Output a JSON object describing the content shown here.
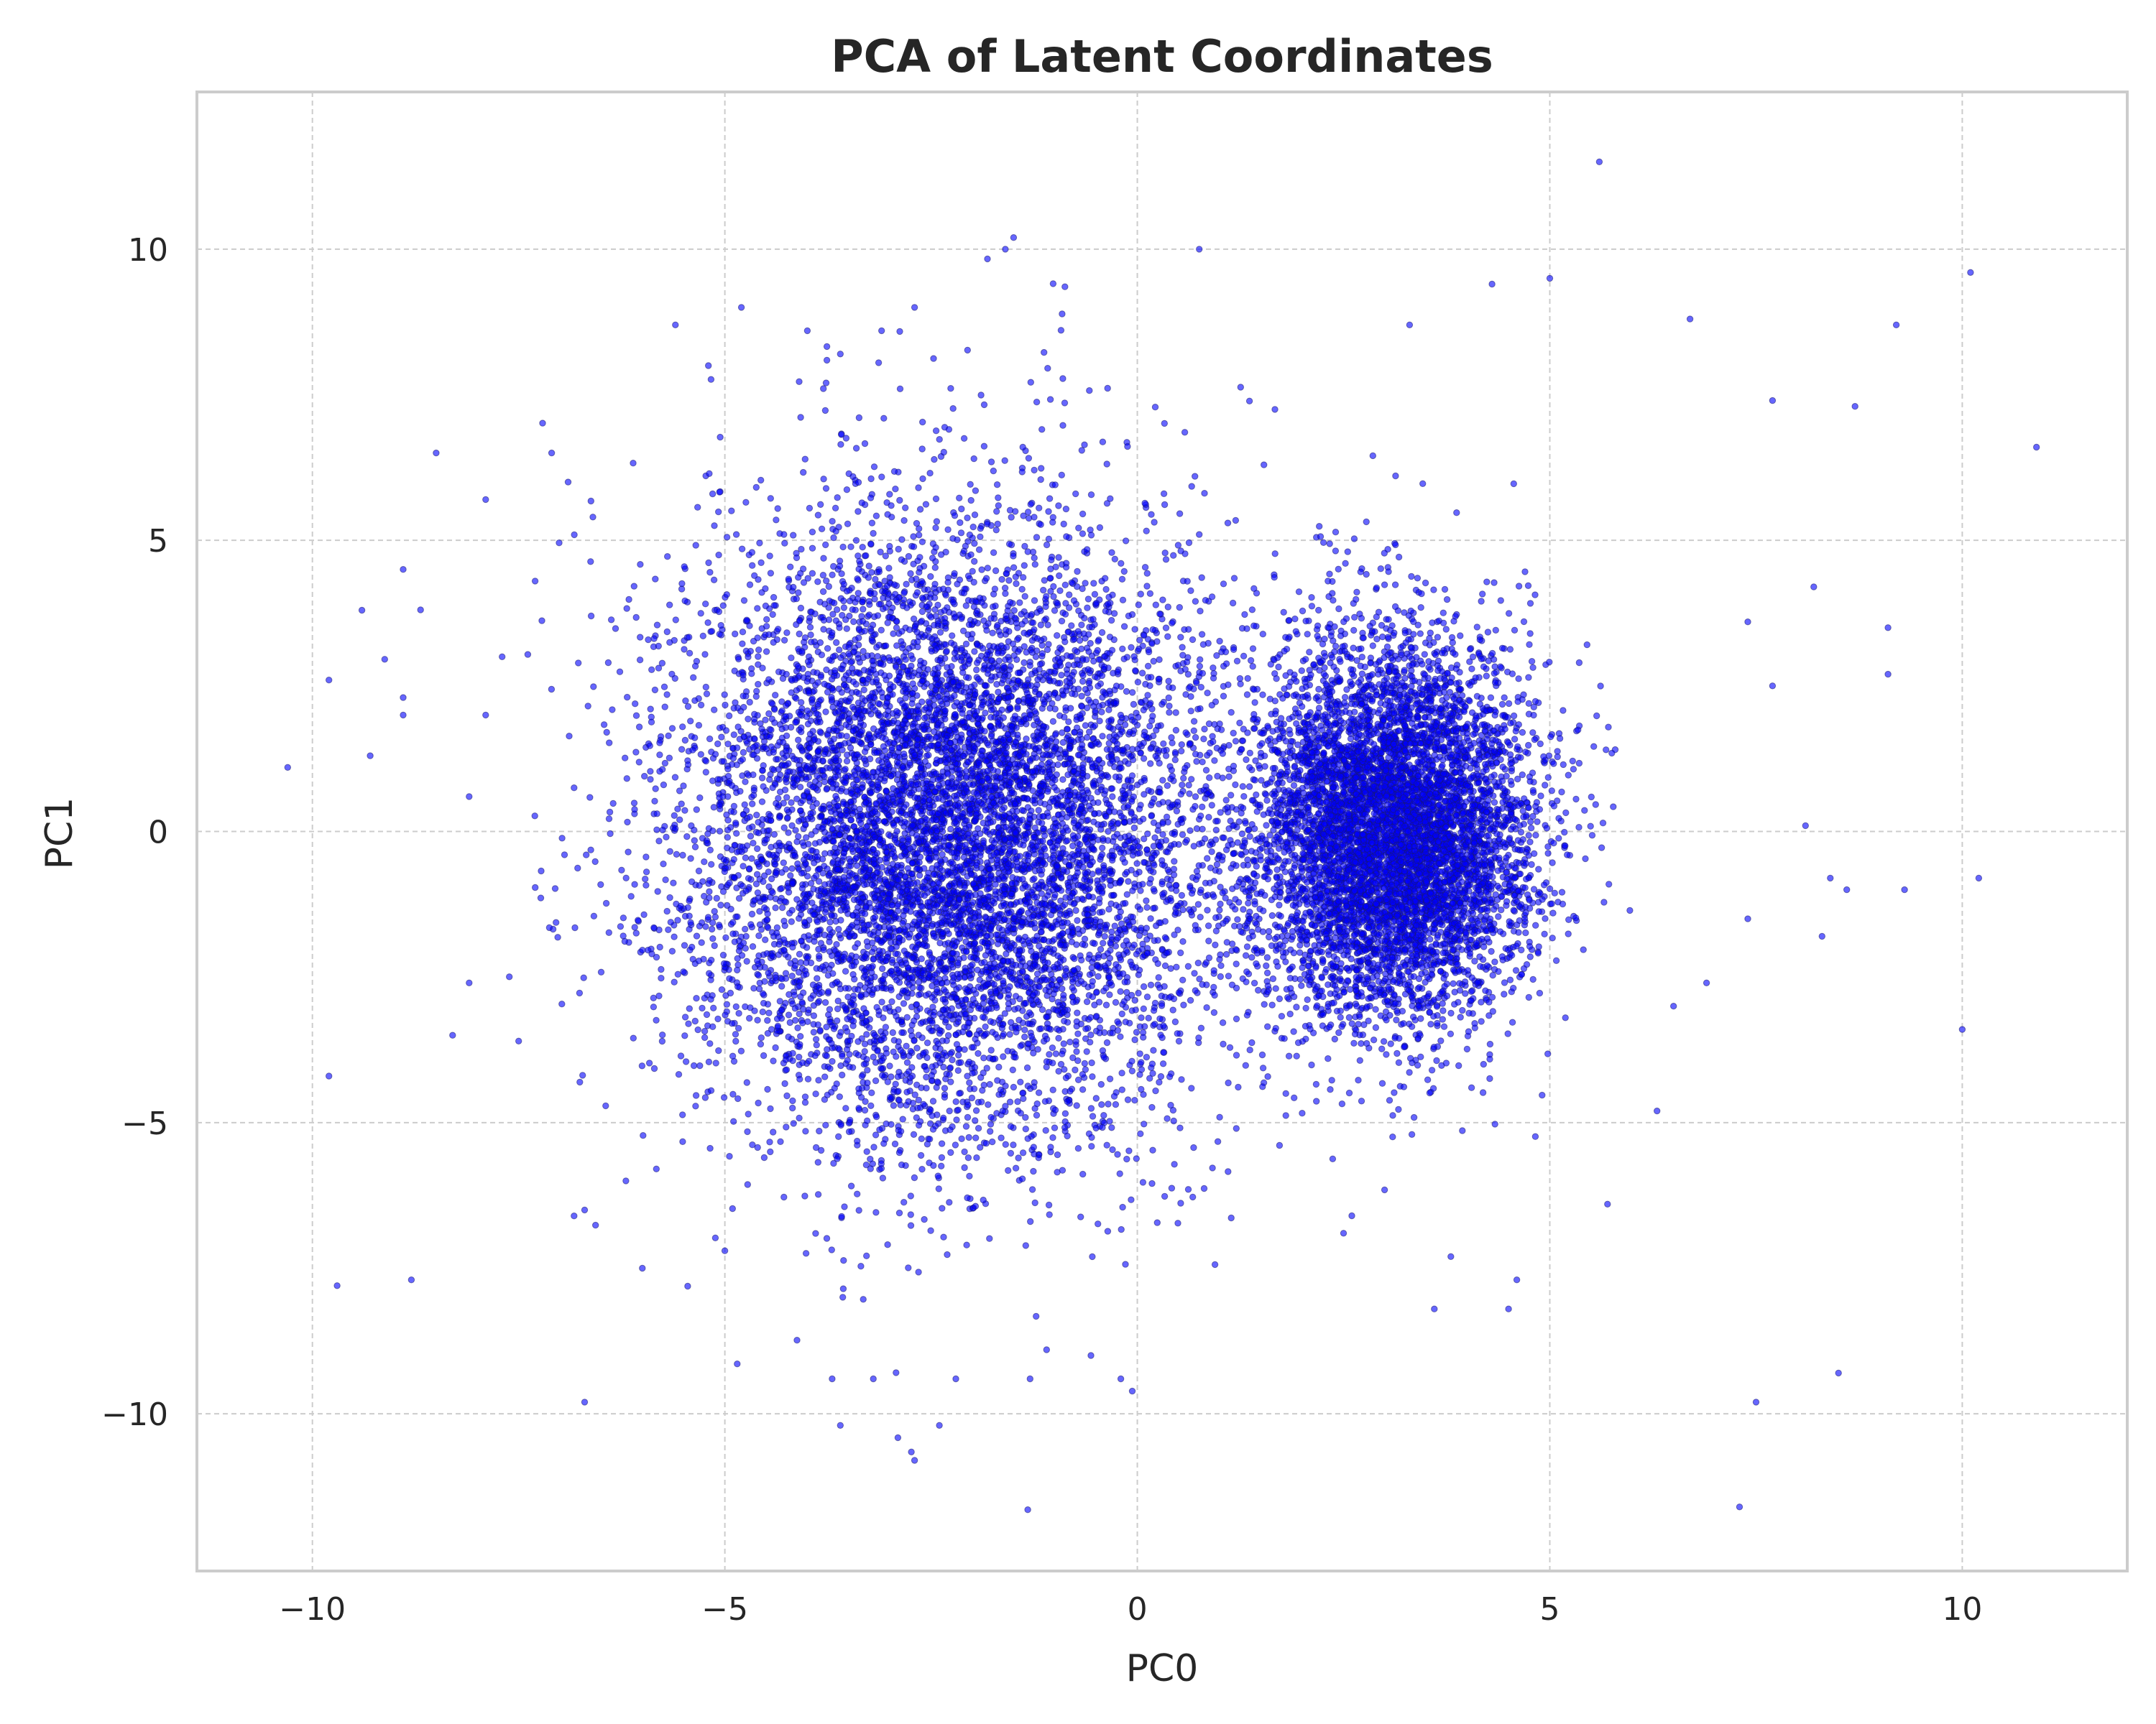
{
  "chart_data": {
    "type": "scatter",
    "title": "PCA of Latent Coordinates",
    "xlabel": "PC0",
    "ylabel": "PC1",
    "xlim": [
      -11.4,
      12.0
    ],
    "ylim": [
      -12.7,
      12.7
    ],
    "xticks": [
      -10,
      -5,
      0,
      5,
      10
    ],
    "yticks": [
      -10,
      -5,
      0,
      5,
      10
    ],
    "xtick_labels": [
      "−10",
      "−5",
      "0",
      "5",
      "10"
    ],
    "ytick_labels": [
      "−10",
      "−5",
      "0",
      "5",
      "10"
    ],
    "grid": true,
    "legend": "none",
    "marker_color": "#0000ff",
    "marker_edge_color": "#1a1a6e",
    "marker_alpha": 0.6,
    "clusters": [
      {
        "center": [
          -2.3,
          0.0
        ],
        "spread": [
          1.6,
          2.6
        ],
        "approx_points": 9000
      },
      {
        "center": [
          3.1,
          0.0
        ],
        "spread": [
          0.85,
          1.6
        ],
        "approx_points": 7000
      }
    ],
    "points": [
      [
        -10.3,
        1.1
      ],
      [
        -9.8,
        2.6
      ],
      [
        -9.8,
        -4.2
      ],
      [
        -9.7,
        -7.8
      ],
      [
        -9.4,
        3.8
      ],
      [
        -9.3,
        1.3
      ],
      [
        -8.9,
        4.5
      ],
      [
        -8.9,
        2.3
      ],
      [
        -8.9,
        2.0
      ],
      [
        -8.8,
        -7.7
      ],
      [
        -8.5,
        6.5
      ],
      [
        -8.3,
        -3.5
      ],
      [
        -8.1,
        0.6
      ],
      [
        -8.1,
        -2.6
      ],
      [
        -7.9,
        5.7
      ],
      [
        -7.9,
        2.0
      ],
      [
        -7.7,
        3.0
      ],
      [
        -7.5,
        -3.6
      ],
      [
        -7.3,
        4.3
      ],
      [
        -7.1,
        6.5
      ],
      [
        -6.9,
        6.0
      ],
      [
        -6.7,
        -6.5
      ],
      [
        -6.7,
        -9.8
      ],
      [
        -6.6,
        5.4
      ],
      [
        -6.2,
        -6.0
      ],
      [
        -6.0,
        -7.5
      ],
      [
        -5.6,
        8.7
      ],
      [
        -5.2,
        8.0
      ],
      [
        -5.0,
        -7.2
      ],
      [
        -4.8,
        9.0
      ],
      [
        -4.0,
        8.6
      ],
      [
        -3.6,
        8.2
      ],
      [
        -3.1,
        8.6
      ],
      [
        -2.7,
        9.0
      ],
      [
        -1.6,
        10.0
      ],
      [
        -1.5,
        10.2
      ],
      [
        -2.7,
        -10.8
      ],
      [
        -3.6,
        -10.2
      ],
      [
        -2.4,
        -10.2
      ],
      [
        -3.7,
        -9.4
      ],
      [
        -3.2,
        -9.4
      ],
      [
        -2.2,
        -9.4
      ],
      [
        -1.3,
        -9.4
      ],
      [
        -1.1,
        -8.9
      ],
      [
        -0.2,
        -9.4
      ],
      [
        0.75,
        10.0
      ],
      [
        0.2,
        0.15
      ],
      [
        0.6,
        -0.15
      ],
      [
        0.75,
        5.1
      ],
      [
        3.3,
        8.7
      ],
      [
        4.3,
        9.4
      ],
      [
        5.0,
        9.5
      ],
      [
        5.6,
        11.5
      ],
      [
        6.7,
        8.8
      ],
      [
        7.7,
        7.4
      ],
      [
        8.7,
        7.3
      ],
      [
        9.2,
        8.7
      ],
      [
        10.1,
        9.6
      ],
      [
        10.9,
        6.6
      ],
      [
        8.2,
        4.2
      ],
      [
        9.1,
        3.5
      ],
      [
        9.1,
        2.7
      ],
      [
        7.4,
        3.6
      ],
      [
        7.7,
        2.5
      ],
      [
        8.1,
        0.1
      ],
      [
        8.4,
        -0.8
      ],
      [
        8.6,
        -1.0
      ],
      [
        9.3,
        -1.0
      ],
      [
        10.2,
        -0.8
      ],
      [
        8.3,
        -1.8
      ],
      [
        7.4,
        -1.5
      ],
      [
        6.9,
        -2.6
      ],
      [
        6.5,
        -3.0
      ],
      [
        6.3,
        -4.8
      ],
      [
        5.7,
        -6.4
      ],
      [
        3.6,
        -8.2
      ],
      [
        4.5,
        -8.2
      ],
      [
        4.6,
        -7.7
      ],
      [
        3.8,
        -7.3
      ],
      [
        10.0,
        -3.4
      ],
      [
        7.5,
        -9.8
      ],
      [
        8.5,
        -9.3
      ],
      [
        7.3,
        -11.6
      ],
      [
        2.6,
        -6.6
      ],
      [
        2.5,
        -6.9
      ],
      [
        1.2,
        -5.1
      ],
      [
        1.8,
        -4.5
      ]
    ]
  }
}
